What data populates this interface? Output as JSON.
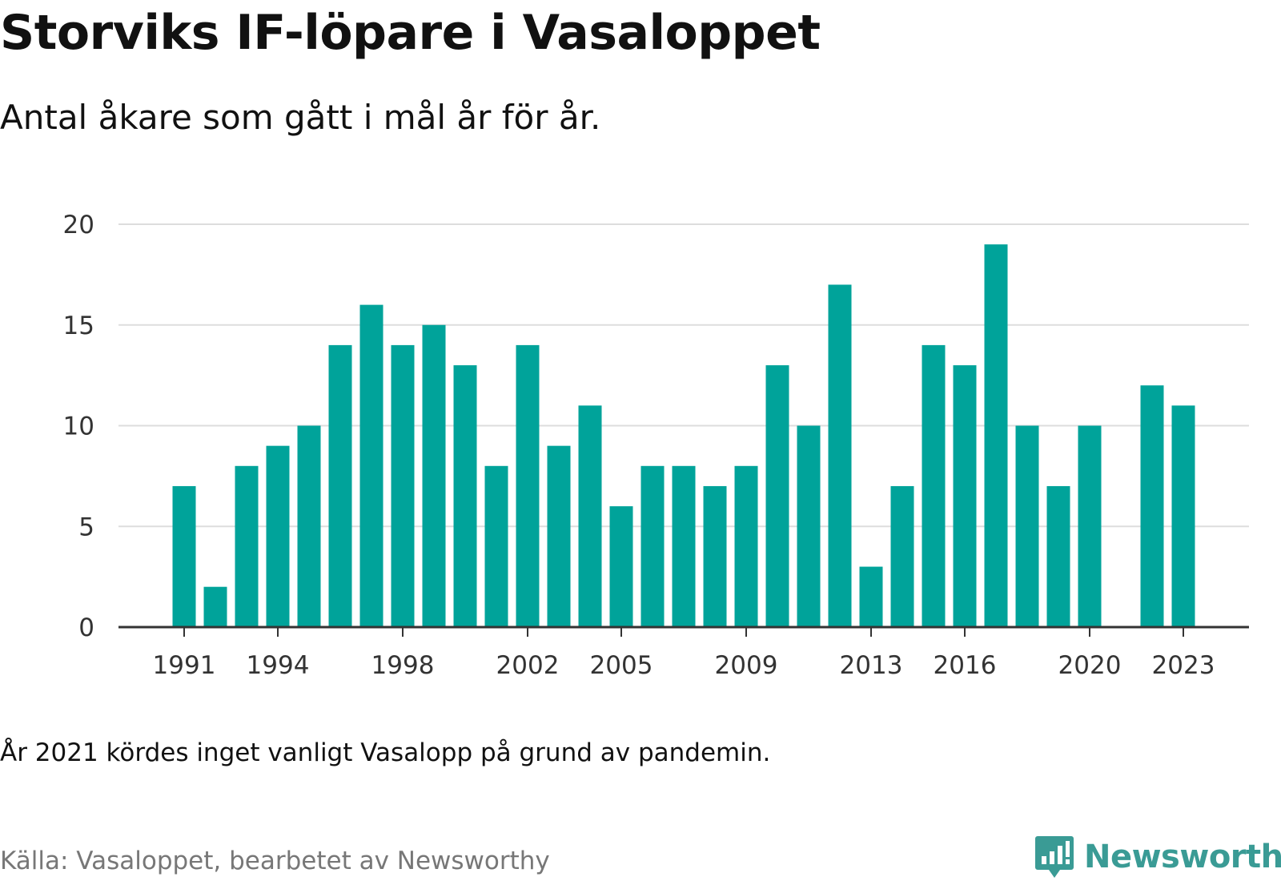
{
  "title": "Storviks IF-löpare i Vasaloppet",
  "subtitle": "Antal åkare som gått i mål år för år.",
  "note": "År 2021 kördes inget vanligt Vasalopp på grund av pandemin.",
  "source": "Källa: Vasaloppet, bearbetet av Newsworthy",
  "brand": {
    "name": "Newsworthy",
    "icon": "newsworthy-logo-icon",
    "color": "#3a9b95"
  },
  "colors": {
    "bar": "#00a39a",
    "grid": "#dddddd",
    "axis": "#333333"
  },
  "chart_data": {
    "type": "bar",
    "x": [
      1991,
      1992,
      1993,
      1994,
      1995,
      1996,
      1997,
      1998,
      1999,
      2000,
      2001,
      2002,
      2003,
      2004,
      2005,
      2006,
      2007,
      2008,
      2009,
      2010,
      2011,
      2012,
      2013,
      2014,
      2015,
      2016,
      2017,
      2018,
      2019,
      2020,
      2021,
      2022,
      2023
    ],
    "values": [
      7,
      2,
      8,
      9,
      10,
      14,
      16,
      14,
      15,
      13,
      8,
      14,
      9,
      11,
      6,
      8,
      8,
      7,
      8,
      13,
      10,
      17,
      3,
      7,
      14,
      13,
      19,
      10,
      7,
      10,
      null,
      12,
      11
    ],
    "x_tick_labels": [
      "1991",
      "1994",
      "1998",
      "2002",
      "2005",
      "2009",
      "2013",
      "2016",
      "2020",
      "2023"
    ],
    "y_ticks": [
      0,
      5,
      10,
      15,
      20
    ],
    "ylim": [
      0,
      20
    ],
    "grid": true,
    "legend": "none"
  }
}
